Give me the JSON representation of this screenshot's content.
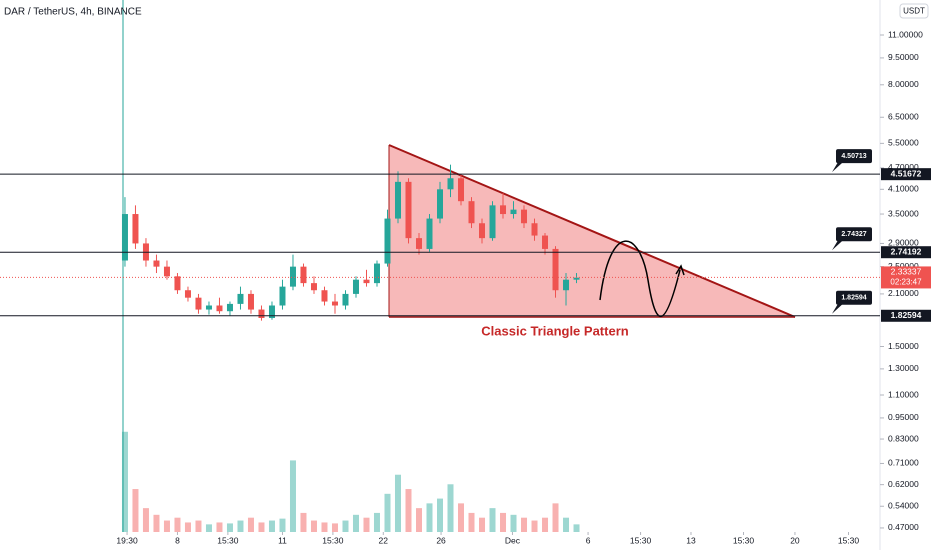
{
  "chart_data": {
    "type": "candlestick",
    "title": "DAR / TetherUS, 4h, BINANCE",
    "currency": "USDT",
    "log_scale": true,
    "up_color": "#26a69a",
    "down_color": "#ef5350",
    "ohlc": [
      [
        2.6,
        3.9,
        2.5,
        3.5
      ],
      [
        3.5,
        3.7,
        2.8,
        2.9
      ],
      [
        2.9,
        3.0,
        2.5,
        2.6
      ],
      [
        2.6,
        2.7,
        2.4,
        2.5
      ],
      [
        2.5,
        2.6,
        2.3,
        2.35
      ],
      [
        2.35,
        2.4,
        2.1,
        2.15
      ],
      [
        2.15,
        2.2,
        2.0,
        2.05
      ],
      [
        2.05,
        2.1,
        1.85,
        1.9
      ],
      [
        1.9,
        2.0,
        1.84,
        1.95
      ],
      [
        1.95,
        2.05,
        1.85,
        1.88
      ],
      [
        1.88,
        2.0,
        1.83,
        1.97
      ],
      [
        1.97,
        2.2,
        1.9,
        2.1
      ],
      [
        2.1,
        2.15,
        1.85,
        1.9
      ],
      [
        1.9,
        1.95,
        1.77,
        1.8
      ],
      [
        1.8,
        2.0,
        1.78,
        1.95
      ],
      [
        1.95,
        2.3,
        1.9,
        2.2
      ],
      [
        2.2,
        2.7,
        2.15,
        2.5
      ],
      [
        2.5,
        2.55,
        2.2,
        2.25
      ],
      [
        2.25,
        2.35,
        2.1,
        2.15
      ],
      [
        2.15,
        2.2,
        1.95,
        2.0
      ],
      [
        2.0,
        2.1,
        1.85,
        1.95
      ],
      [
        1.95,
        2.15,
        1.9,
        2.1
      ],
      [
        2.1,
        2.35,
        2.05,
        2.3
      ],
      [
        2.3,
        2.45,
        2.2,
        2.25
      ],
      [
        2.25,
        2.6,
        2.2,
        2.55
      ],
      [
        2.55,
        3.6,
        2.5,
        3.4
      ],
      [
        3.4,
        4.6,
        3.3,
        4.3
      ],
      [
        4.3,
        4.4,
        2.9,
        3.0
      ],
      [
        3.0,
        3.1,
        2.7,
        2.8
      ],
      [
        2.8,
        3.5,
        2.75,
        3.4
      ],
      [
        3.4,
        4.3,
        3.3,
        4.1
      ],
      [
        4.1,
        4.8,
        3.9,
        4.4
      ],
      [
        4.4,
        4.5,
        3.7,
        3.8
      ],
      [
        3.8,
        3.9,
        3.2,
        3.3
      ],
      [
        3.3,
        3.4,
        2.9,
        3.0
      ],
      [
        3.0,
        3.8,
        2.95,
        3.7
      ],
      [
        3.7,
        4.0,
        3.4,
        3.5
      ],
      [
        3.5,
        3.8,
        3.4,
        3.6
      ],
      [
        3.6,
        3.7,
        3.2,
        3.3
      ],
      [
        3.3,
        3.4,
        2.95,
        3.05
      ],
      [
        3.05,
        3.1,
        2.7,
        2.8
      ],
      [
        2.8,
        2.85,
        2.05,
        2.15
      ],
      [
        2.15,
        2.4,
        1.95,
        2.3
      ],
      [
        2.3,
        2.4,
        2.25,
        2.33
      ]
    ],
    "volume": [
      105,
      45,
      25,
      18,
      12,
      15,
      10,
      12,
      8,
      10,
      9,
      12,
      15,
      10,
      12,
      14,
      75,
      20,
      12,
      10,
      9,
      12,
      18,
      15,
      20,
      40,
      60,
      45,
      25,
      30,
      35,
      50,
      30,
      20,
      15,
      25,
      20,
      18,
      15,
      12,
      15,
      30,
      15,
      8
    ],
    "vlim": [
      0,
      110
    ],
    "xlim": [
      -11.9,
      71.9
    ],
    "xticks": [
      {
        "value": 0.2,
        "label": "19:30"
      },
      {
        "value": 5,
        "label": "8"
      },
      {
        "value": 9.8,
        "label": "15:30"
      },
      {
        "value": 15,
        "label": "11"
      },
      {
        "value": 19.8,
        "label": "15:30"
      },
      {
        "value": 24.6,
        "label": "22"
      },
      {
        "value": 30.1,
        "label": "26"
      },
      {
        "value": 36.9,
        "label": "Dec"
      },
      {
        "value": 44.1,
        "label": "6"
      },
      {
        "value": 49.1,
        "label": "15:30"
      },
      {
        "value": 53.9,
        "label": "13"
      },
      {
        "value": 58.9,
        "label": "15:30"
      },
      {
        "value": 63.8,
        "label": "20"
      },
      {
        "value": 68.9,
        "label": "15:30"
      }
    ],
    "ylim": [
      0.458,
      13.76
    ],
    "yticks": [
      {
        "value": 11,
        "label": "11.00000"
      },
      {
        "value": 9.5,
        "label": "9.50000"
      },
      {
        "value": 8,
        "label": "8.00000"
      },
      {
        "value": 6.5,
        "label": "6.50000"
      },
      {
        "value": 5.5,
        "label": "5.50000"
      },
      {
        "value": 4.7,
        "label": "4.70000"
      },
      {
        "value": 4.1,
        "label": "4.10000"
      },
      {
        "value": 3.5,
        "label": "3.50000"
      },
      {
        "value": 2.9,
        "label": "2.90000"
      },
      {
        "value": 2.5,
        "label": "2.50000"
      },
      {
        "value": 2.1,
        "label": "2.10000"
      },
      {
        "value": 1.5,
        "label": "1.50000"
      },
      {
        "value": 1.3,
        "label": "1.30000"
      },
      {
        "value": 1.1,
        "label": "1.10000"
      },
      {
        "value": 0.95,
        "label": "0.95000"
      },
      {
        "value": 0.83,
        "label": "0.83000"
      },
      {
        "value": 0.71,
        "label": "0.71000"
      },
      {
        "value": 0.62,
        "label": "0.62000"
      },
      {
        "value": 0.54,
        "label": "0.54000"
      },
      {
        "value": 0.47,
        "label": "0.47000"
      }
    ],
    "levels": [
      {
        "value": 4.51672,
        "note": 4.50713
      },
      {
        "value": 2.74192,
        "note": 2.74327
      },
      {
        "value": 1.82594,
        "note": 1.82594
      }
    ],
    "last_price": {
      "value": 2.33337,
      "countdown": "02:23:47"
    },
    "annotation": "Classic Triangle Pattern"
  }
}
